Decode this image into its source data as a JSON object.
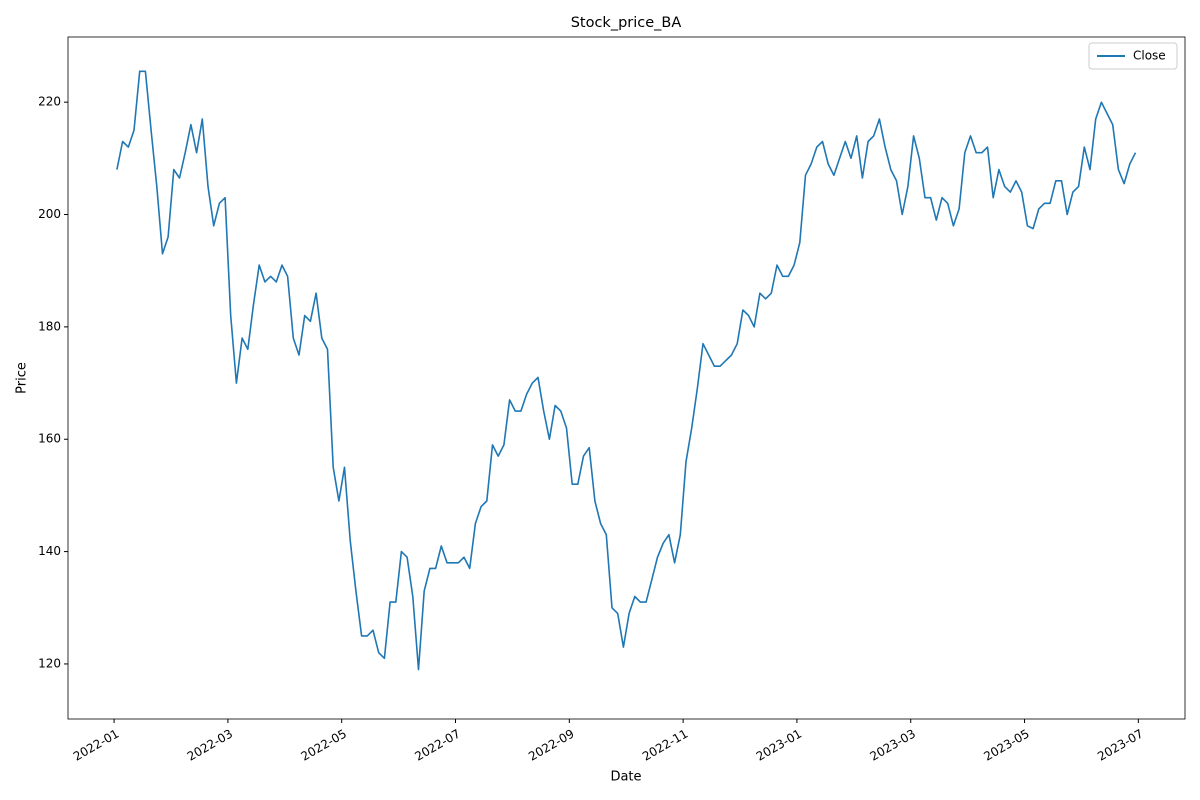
{
  "chart_data": {
    "type": "line",
    "title": "Stock_price_BA",
    "x_label": "Date",
    "y_label": "Price",
    "x": [
      0.05,
      0.15,
      0.25,
      0.35,
      0.45,
      0.55,
      0.65,
      0.75,
      0.85,
      0.95,
      1.05,
      1.15,
      1.25,
      1.35,
      1.45,
      1.55,
      1.65,
      1.75,
      1.85,
      1.95,
      2.05,
      2.15,
      2.25,
      2.35,
      2.45,
      2.55,
      2.65,
      2.75,
      2.85,
      2.95,
      3.05,
      3.15,
      3.25,
      3.35,
      3.45,
      3.55,
      3.65,
      3.75,
      3.85,
      3.95,
      4.05,
      4.15,
      4.25,
      4.35,
      4.45,
      4.55,
      4.65,
      4.75,
      4.85,
      4.95,
      5.05,
      5.15,
      5.25,
      5.35,
      5.45,
      5.55,
      5.65,
      5.75,
      5.85,
      5.95,
      6.05,
      6.15,
      6.25,
      6.35,
      6.45,
      6.55,
      6.65,
      6.75,
      6.85,
      6.95,
      7.05,
      7.15,
      7.25,
      7.35,
      7.45,
      7.55,
      7.65,
      7.75,
      7.85,
      7.95,
      8.05,
      8.15,
      8.25,
      8.35,
      8.45,
      8.55,
      8.65,
      8.75,
      8.85,
      8.95,
      9.05,
      9.15,
      9.25,
      9.35,
      9.45,
      9.55,
      9.65,
      9.75,
      9.85,
      9.95,
      10.05,
      10.15,
      10.25,
      10.35,
      10.45,
      10.55,
      10.65,
      10.75,
      10.85,
      10.95,
      11.05,
      11.15,
      11.25,
      11.35,
      11.45,
      11.55,
      11.65,
      11.75,
      11.85,
      11.95,
      12.05,
      12.15,
      12.25,
      12.35,
      12.45,
      12.55,
      12.65,
      12.75,
      12.85,
      12.95,
      13.05,
      13.15,
      13.25,
      13.35,
      13.45,
      13.55,
      13.65,
      13.75,
      13.85,
      13.95,
      14.05,
      14.15,
      14.25,
      14.35,
      14.45,
      14.55,
      14.65,
      14.75,
      14.85,
      14.95,
      15.05,
      15.15,
      15.25,
      15.35,
      15.45,
      15.55,
      15.65,
      15.75,
      15.85,
      15.95,
      16.05,
      16.15,
      16.25,
      16.35,
      16.45,
      16.55,
      16.65,
      16.75,
      16.85,
      16.95,
      17.05,
      17.15,
      17.25,
      17.35,
      17.45,
      17.55,
      17.65,
      17.75,
      17.85,
      17.95
    ],
    "series": [
      {
        "name": "Close",
        "color": "#1f77b4",
        "values": [
          208,
          213,
          212,
          215,
          225.5,
          225.5,
          215,
          205,
          193,
          196,
          208,
          206.5,
          211,
          216,
          211,
          217,
          205,
          198,
          202,
          203,
          182,
          170,
          178,
          176,
          184,
          191,
          188,
          189,
          188,
          191,
          189,
          178,
          175,
          182,
          181,
          186,
          178,
          176,
          155,
          149,
          155,
          142,
          133,
          125,
          125,
          126,
          122,
          121,
          131,
          131,
          140,
          139,
          132,
          119,
          133,
          137,
          137,
          141,
          138,
          138,
          138,
          139,
          137,
          145,
          148,
          149,
          159,
          157,
          159,
          167,
          165,
          165,
          168,
          170,
          171,
          165,
          160,
          166,
          165,
          162,
          152,
          152,
          157,
          158.5,
          149,
          145,
          143,
          130,
          129,
          123,
          129,
          132,
          131,
          131,
          135,
          139,
          141.5,
          143,
          138,
          143,
          156,
          162,
          169,
          177,
          175,
          173,
          173,
          174,
          175,
          177,
          183,
          182,
          180,
          186,
          185,
          186,
          191,
          189,
          189,
          191,
          195,
          207,
          209,
          212,
          213,
          209,
          207,
          210,
          213,
          210,
          214,
          206.5,
          213,
          214,
          217,
          212,
          208,
          206,
          200,
          205,
          214,
          210,
          203,
          203,
          199,
          203,
          202,
          198,
          201,
          211,
          214,
          211,
          211,
          212,
          203,
          208,
          205,
          204,
          206,
          204,
          198,
          197.5,
          201,
          202,
          202,
          206,
          206,
          200,
          204,
          205,
          212,
          208,
          217,
          220,
          218,
          216,
          208,
          205.5,
          209,
          211
        ]
      }
    ],
    "xlim": [
      -0.81,
      18.82
    ],
    "ylim": [
      110.2,
      231.6
    ],
    "xticks": [
      {
        "value": 0,
        "label": "2022-01"
      },
      {
        "value": 2,
        "label": "2022-03"
      },
      {
        "value": 4,
        "label": "2022-05"
      },
      {
        "value": 6,
        "label": "2022-07"
      },
      {
        "value": 8,
        "label": "2022-09"
      },
      {
        "value": 10,
        "label": "2022-11"
      },
      {
        "value": 12,
        "label": "2023-01"
      },
      {
        "value": 14,
        "label": "2023-03"
      },
      {
        "value": 16,
        "label": "2023-05"
      },
      {
        "value": 18,
        "label": "2023-07"
      }
    ],
    "yticks": [
      120,
      140,
      160,
      180,
      200,
      220
    ],
    "grid": false,
    "legend": "upper right"
  }
}
